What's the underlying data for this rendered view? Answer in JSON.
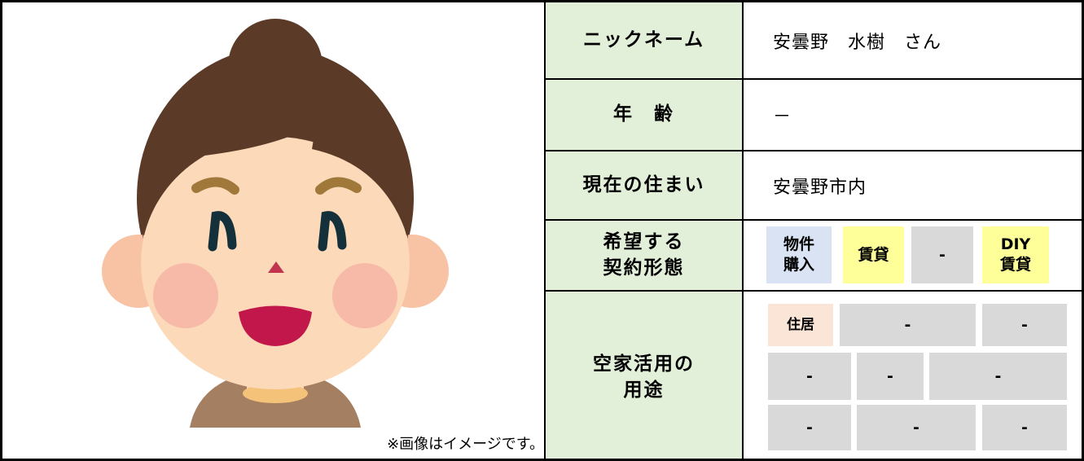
{
  "profile": {
    "caption": "※画像はイメージです。"
  },
  "table": {
    "rows": [
      {
        "label": "ニックネーム",
        "value": "安曇野　水樹　さん"
      },
      {
        "label": "年　齢",
        "value": "－"
      },
      {
        "label": "現在の住まい",
        "value": "安曇野市内"
      },
      {
        "label": "希望する\n契約形態",
        "tags": [
          "物件\n購入",
          "賃貸",
          "-",
          "DIY\n賃貸"
        ]
      },
      {
        "label": "空家活用の\n用途",
        "tags": [
          "住居",
          "-",
          "-",
          "-",
          "-",
          "-",
          "-",
          "-",
          "-"
        ]
      }
    ]
  }
}
